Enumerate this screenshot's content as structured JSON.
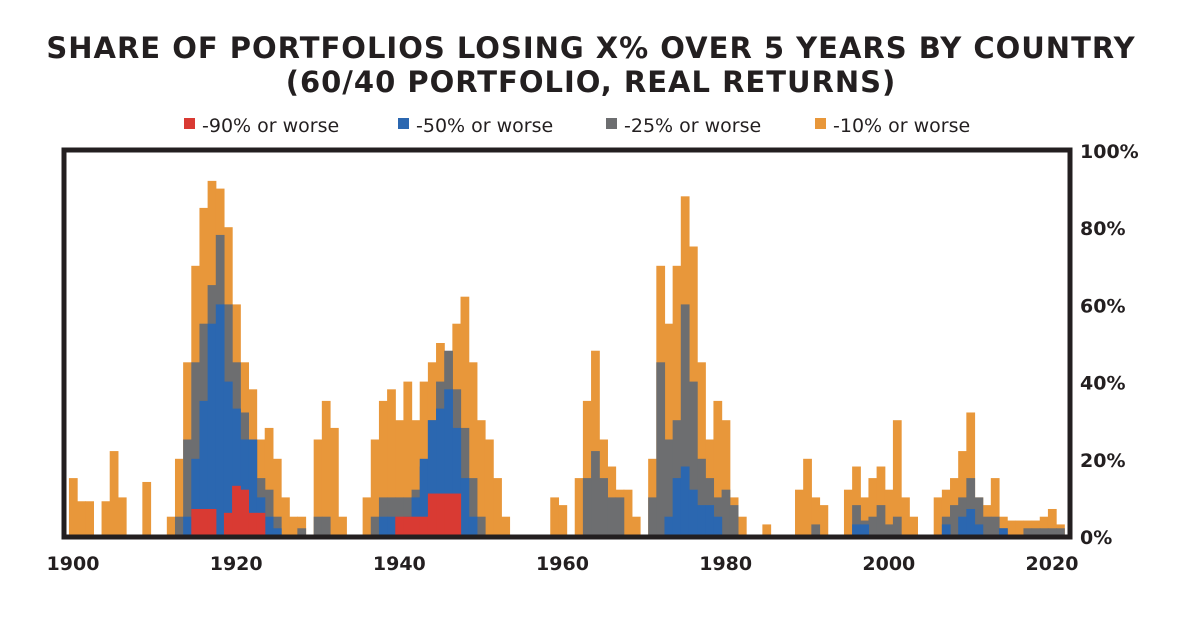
{
  "chart_data": {
    "type": "area",
    "title": "SHARE OF PORTFOLIOS LOSING X% OVER 5 YEARS BY COUNTRY",
    "subtitle": "(60/40 PORTFOLIO, REAL RETURNS)",
    "xlabel": "",
    "ylabel": "",
    "xlim": [
      1900,
      2022
    ],
    "ylim": [
      0,
      100
    ],
    "legend_position": "top",
    "x_ticks": [
      "1900",
      "1920",
      "1940",
      "1960",
      "1980",
      "2000",
      "2020"
    ],
    "y_ticks": [
      "0%",
      "20%",
      "40%",
      "60%",
      "80%",
      "100%"
    ],
    "series": [
      {
        "name": "-10% or worse",
        "color": "#e8973a",
        "values": {
          "1900": 15,
          "1901": 9,
          "1902": 9,
          "1904": 9,
          "1905": 22,
          "1906": 10,
          "1909": 14,
          "1912": 5,
          "1913": 20,
          "1914": 45,
          "1915": 70,
          "1916": 85,
          "1917": 92,
          "1918": 90,
          "1919": 80,
          "1920": 60,
          "1921": 45,
          "1922": 38,
          "1923": 25,
          "1924": 28,
          "1925": 20,
          "1926": 10,
          "1927": 5,
          "1928": 5,
          "1930": 25,
          "1931": 35,
          "1932": 28,
          "1933": 5,
          "1936": 10,
          "1937": 25,
          "1938": 35,
          "1939": 38,
          "1940": 30,
          "1941": 40,
          "1942": 30,
          "1943": 40,
          "1944": 45,
          "1945": 50,
          "1946": 45,
          "1947": 55,
          "1948": 62,
          "1949": 45,
          "1950": 30,
          "1951": 25,
          "1952": 15,
          "1953": 5,
          "1959": 10,
          "1960": 8,
          "1962": 15,
          "1963": 35,
          "1964": 48,
          "1965": 25,
          "1966": 18,
          "1967": 12,
          "1968": 12,
          "1969": 5,
          "1971": 20,
          "1972": 70,
          "1973": 55,
          "1974": 70,
          "1975": 88,
          "1976": 75,
          "1977": 45,
          "1978": 25,
          "1979": 35,
          "1980": 30,
          "1981": 10,
          "1982": 5,
          "1985": 3,
          "1989": 12,
          "1990": 20,
          "1991": 10,
          "1992": 8,
          "1995": 12,
          "1996": 18,
          "1997": 10,
          "1998": 15,
          "1999": 18,
          "2000": 12,
          "2001": 30,
          "2002": 10,
          "2003": 5,
          "2006": 10,
          "2007": 12,
          "2008": 15,
          "2009": 22,
          "2010": 32,
          "2011": 10,
          "2012": 8,
          "2013": 15,
          "2014": 5,
          "2015": 4,
          "2016": 4,
          "2017": 4,
          "2018": 4,
          "2019": 5,
          "2020": 7,
          "2021": 3
        }
      },
      {
        "name": "-25% or worse",
        "color": "#6d6e70",
        "values": {
          "1913": 5,
          "1914": 25,
          "1915": 45,
          "1916": 55,
          "1917": 65,
          "1918": 78,
          "1919": 60,
          "1920": 45,
          "1921": 32,
          "1922": 25,
          "1923": 15,
          "1924": 12,
          "1925": 5,
          "1928": 2,
          "1930": 5,
          "1931": 5,
          "1937": 5,
          "1938": 10,
          "1939": 10,
          "1940": 10,
          "1941": 10,
          "1942": 12,
          "1943": 18,
          "1944": 30,
          "1945": 40,
          "1946": 48,
          "1947": 38,
          "1948": 28,
          "1949": 15,
          "1950": 5,
          "1963": 15,
          "1964": 22,
          "1965": 15,
          "1966": 10,
          "1967": 10,
          "1971": 10,
          "1972": 45,
          "1973": 25,
          "1974": 30,
          "1975": 60,
          "1976": 40,
          "1977": 20,
          "1978": 15,
          "1979": 10,
          "1980": 12,
          "1981": 8,
          "1991": 3,
          "1996": 8,
          "1997": 4,
          "1998": 5,
          "1999": 8,
          "2000": 3,
          "2001": 5,
          "2007": 5,
          "2008": 8,
          "2009": 10,
          "2010": 15,
          "2011": 10,
          "2012": 5,
          "2013": 5,
          "2014": 2,
          "2017": 2,
          "2018": 2,
          "2019": 2,
          "2020": 2,
          "2021": 2
        }
      },
      {
        "name": "-50% or worse",
        "color": "#2b67b0",
        "values": {
          "1914": 5,
          "1915": 20,
          "1916": 35,
          "1917": 55,
          "1918": 60,
          "1919": 40,
          "1920": 33,
          "1921": 25,
          "1922": 25,
          "1923": 10,
          "1924": 5,
          "1925": 2,
          "1938": 5,
          "1939": 5,
          "1941": 5,
          "1942": 10,
          "1943": 20,
          "1944": 30,
          "1945": 33,
          "1946": 38,
          "1947": 28,
          "1948": 15,
          "1949": 5,
          "1973": 5,
          "1974": 15,
          "1975": 18,
          "1976": 12,
          "1977": 8,
          "1978": 8,
          "1979": 5,
          "1996": 3,
          "1997": 3,
          "2007": 3,
          "2009": 5,
          "2010": 7,
          "2011": 3,
          "2014": 2
        }
      },
      {
        "name": "-90% or worse",
        "color": "#d93a33",
        "values": {
          "1915": 7,
          "1916": 7,
          "1917": 7,
          "1919": 6,
          "1920": 13,
          "1921": 12,
          "1922": 6,
          "1923": 6,
          "1940": 5,
          "1941": 5,
          "1942": 5,
          "1943": 5,
          "1944": 11,
          "1945": 11,
          "1946": 11,
          "1947": 11
        }
      }
    ],
    "legend_order": [
      "-90% or worse",
      "-50% or worse",
      "-25% or worse",
      "-10% or worse"
    ]
  }
}
